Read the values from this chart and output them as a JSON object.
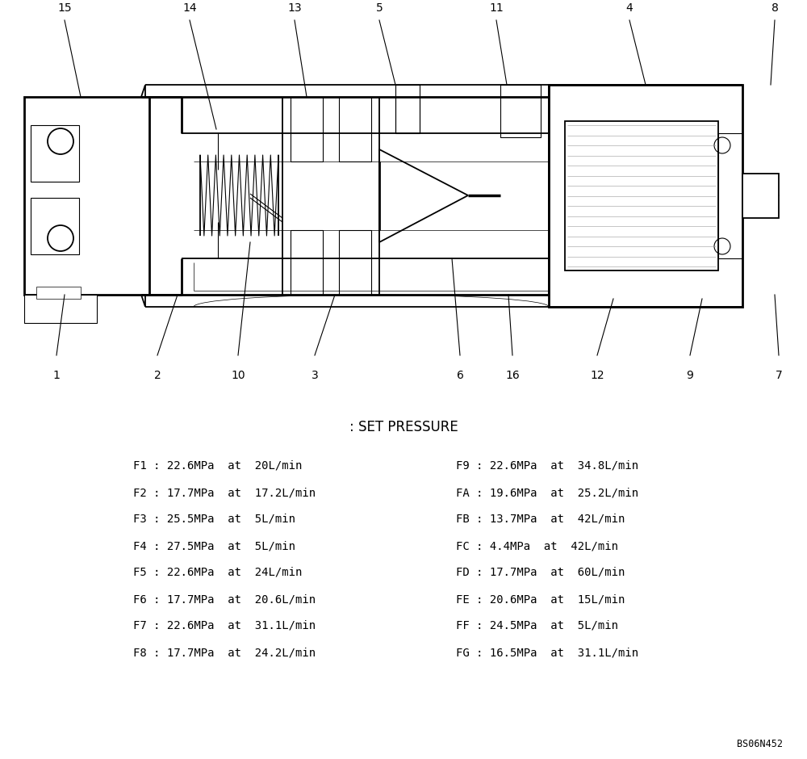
{
  "bg_color": "#ffffff",
  "title_text": ": SET PRESSURE",
  "pressure_data_left": [
    "F1 : 22.6MPa  at  20L/min",
    "F2 : 17.7MPa  at  17.2L/min",
    "F3 : 25.5MPa  at  5L/min",
    "F4 : 27.5MPa  at  5L/min",
    "F5 : 22.6MPa  at  24L/min",
    "F6 : 17.7MPa  at  20.6L/min",
    "F7 : 22.6MPa  at  31.1L/min",
    "F8 : 17.7MPa  at  24.2L/min"
  ],
  "pressure_data_right": [
    "F9 : 22.6MPa  at  34.8L/min",
    "FA : 19.6MPa  at  25.2L/min",
    "FB : 13.7MPa  at  42L/min",
    "FC : 4.4MPa  at  42L/min",
    "FD : 17.7MPa  at  60L/min",
    "FE : 20.6MPa  at  15L/min",
    "FF : 24.5MPa  at  5L/min",
    "FG : 16.5MPa  at  31.1L/min"
  ],
  "watermark": "BS06N452"
}
